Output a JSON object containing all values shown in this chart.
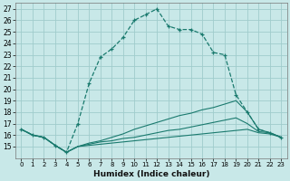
{
  "xlabel": "Humidex (Indice chaleur)",
  "bg_color": "#c8e8e8",
  "grid_color": "#b0d8d8",
  "line_color": "#1a7a6e",
  "xlim": [
    -0.5,
    23.5
  ],
  "ylim": [
    14,
    27.5
  ],
  "yticks": [
    15,
    16,
    17,
    18,
    19,
    20,
    21,
    22,
    23,
    24,
    25,
    26,
    27
  ],
  "xticks": [
    0,
    1,
    2,
    3,
    4,
    5,
    6,
    7,
    8,
    9,
    10,
    11,
    12,
    13,
    14,
    15,
    16,
    17,
    18,
    19,
    20,
    21,
    22,
    23
  ],
  "series_main": {
    "x": [
      0,
      1,
      2,
      3,
      4,
      5,
      6,
      7,
      8,
      9,
      10,
      11,
      12,
      13,
      14,
      15,
      16,
      17,
      18,
      19,
      20,
      21,
      22,
      23
    ],
    "y": [
      16.5,
      16.0,
      15.8,
      15.1,
      14.5,
      17.0,
      20.5,
      22.8,
      23.5,
      24.5,
      26.0,
      26.5,
      27.0,
      25.5,
      25.2,
      25.2,
      24.8,
      23.2,
      23.0,
      19.5,
      18.0,
      16.5,
      16.2,
      15.8
    ]
  },
  "series_line2": {
    "x": [
      0,
      1,
      2,
      3,
      4,
      5,
      6,
      7,
      8,
      9,
      10,
      11,
      12,
      13,
      14,
      15,
      16,
      17,
      18,
      19,
      20,
      21,
      22,
      23
    ],
    "y": [
      16.5,
      16.0,
      15.8,
      15.1,
      14.5,
      15.0,
      15.3,
      15.5,
      15.8,
      16.1,
      16.5,
      16.8,
      17.1,
      17.4,
      17.7,
      17.9,
      18.2,
      18.4,
      18.7,
      19.0,
      18.0,
      16.5,
      16.2,
      15.8
    ]
  },
  "series_line3": {
    "x": [
      0,
      1,
      2,
      3,
      4,
      5,
      6,
      7,
      8,
      9,
      10,
      11,
      12,
      13,
      14,
      15,
      16,
      17,
      18,
      19,
      20,
      21,
      22,
      23
    ],
    "y": [
      16.5,
      16.0,
      15.8,
      15.1,
      14.5,
      15.0,
      15.2,
      15.4,
      15.5,
      15.7,
      15.8,
      16.0,
      16.2,
      16.4,
      16.5,
      16.7,
      16.9,
      17.1,
      17.3,
      17.5,
      17.0,
      16.3,
      16.2,
      15.8
    ]
  },
  "series_line4": {
    "x": [
      0,
      1,
      2,
      3,
      4,
      5,
      6,
      7,
      8,
      9,
      10,
      11,
      12,
      13,
      14,
      15,
      16,
      17,
      18,
      19,
      20,
      21,
      22,
      23
    ],
    "y": [
      16.5,
      16.0,
      15.8,
      15.1,
      14.5,
      15.0,
      15.1,
      15.2,
      15.3,
      15.4,
      15.5,
      15.6,
      15.7,
      15.8,
      15.9,
      16.0,
      16.1,
      16.2,
      16.3,
      16.4,
      16.5,
      16.2,
      16.1,
      15.8
    ]
  }
}
